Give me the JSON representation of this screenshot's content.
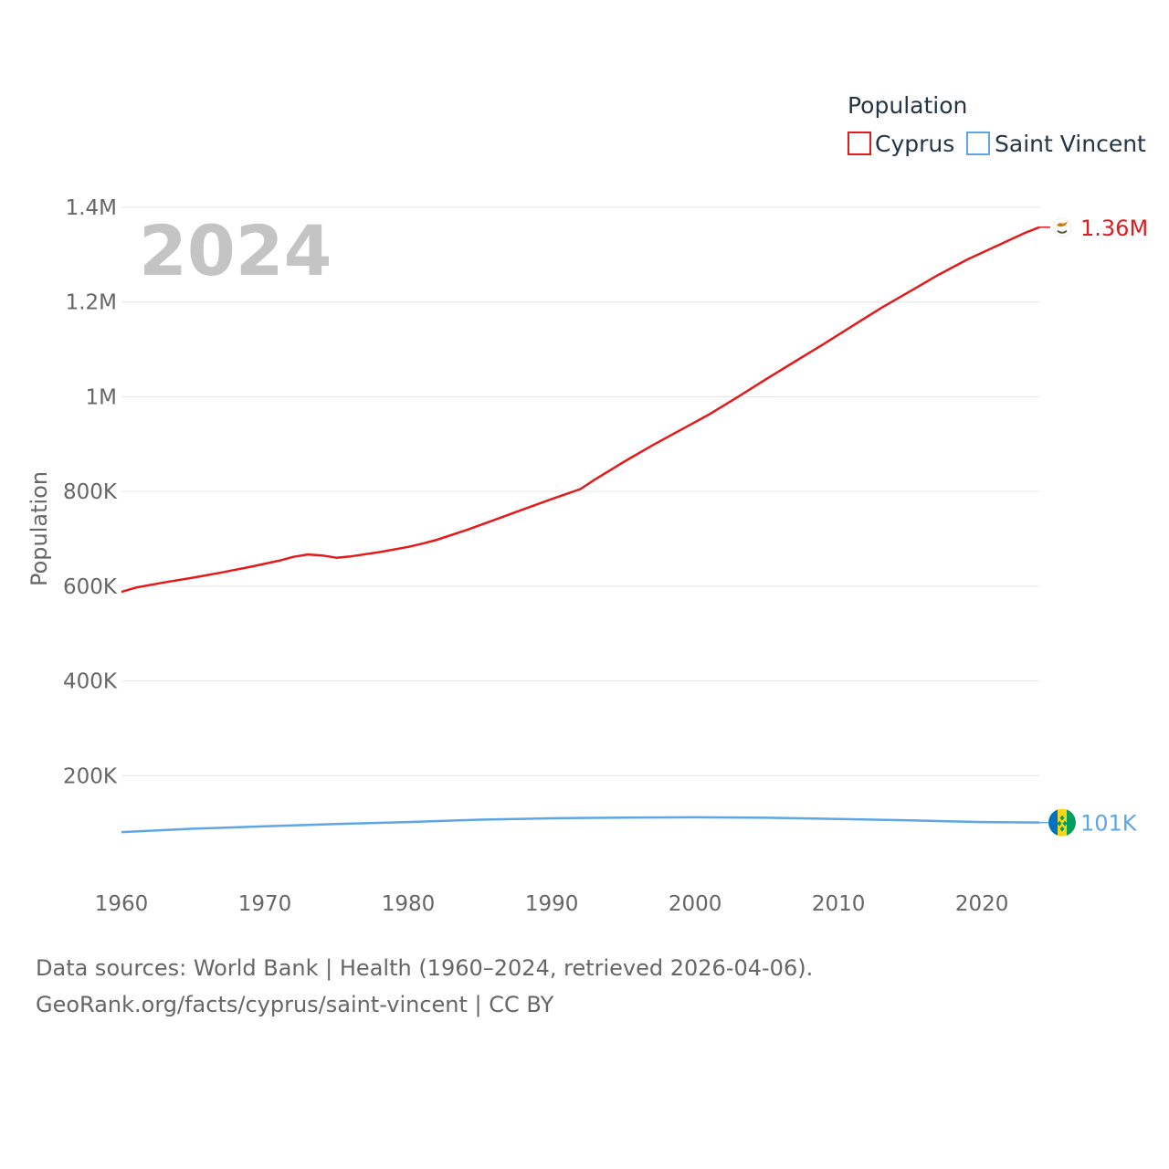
{
  "chart_data": {
    "type": "line",
    "year_watermark": "2024",
    "ylabel": "Population",
    "xlim": [
      1960,
      2024
    ],
    "ylim": [
      0,
      1400000
    ],
    "x_ticks": [
      {
        "value": 1960,
        "label": "1960"
      },
      {
        "value": 1970,
        "label": "1970"
      },
      {
        "value": 1980,
        "label": "1980"
      },
      {
        "value": 1990,
        "label": "1990"
      },
      {
        "value": 2000,
        "label": "2000"
      },
      {
        "value": 2010,
        "label": "2010"
      },
      {
        "value": 2020,
        "label": "2020"
      }
    ],
    "y_ticks": [
      {
        "value": 200000,
        "label": "200K"
      },
      {
        "value": 400000,
        "label": "400K"
      },
      {
        "value": 600000,
        "label": "600K"
      },
      {
        "value": 800000,
        "label": "800K"
      },
      {
        "value": 1000000,
        "label": "1M"
      },
      {
        "value": 1200000,
        "label": "1.2M"
      },
      {
        "value": 1400000,
        "label": "1.4M"
      }
    ],
    "legend": {
      "title": "Population",
      "position": "top-right"
    },
    "series": [
      {
        "name": "Cyprus",
        "color": "#e31a1c",
        "end_label": "1.36M",
        "flag_icon": "cyprus-flag-icon",
        "points": [
          [
            1960,
            588000
          ],
          [
            1961,
            597000
          ],
          [
            1963,
            608000
          ],
          [
            1965,
            618000
          ],
          [
            1967,
            629000
          ],
          [
            1969,
            641000
          ],
          [
            1971,
            654000
          ],
          [
            1972,
            662000
          ],
          [
            1973,
            667000
          ],
          [
            1974,
            665000
          ],
          [
            1975,
            660000
          ],
          [
            1976,
            663000
          ],
          [
            1978,
            672000
          ],
          [
            1980,
            683000
          ],
          [
            1981,
            690000
          ],
          [
            1982,
            698000
          ],
          [
            1984,
            718000
          ],
          [
            1986,
            740000
          ],
          [
            1988,
            762000
          ],
          [
            1990,
            784000
          ],
          [
            1992,
            805000
          ],
          [
            1993,
            825000
          ],
          [
            1995,
            862000
          ],
          [
            1997,
            897000
          ],
          [
            1999,
            930000
          ],
          [
            2001,
            963000
          ],
          [
            2003,
            1000000
          ],
          [
            2005,
            1038000
          ],
          [
            2007,
            1075000
          ],
          [
            2009,
            1112000
          ],
          [
            2011,
            1150000
          ],
          [
            2013,
            1188000
          ],
          [
            2015,
            1223000
          ],
          [
            2017,
            1258000
          ],
          [
            2019,
            1290000
          ],
          [
            2021,
            1318000
          ],
          [
            2023,
            1346000
          ],
          [
            2024,
            1358000
          ]
        ]
      },
      {
        "name": "Saint Vincent",
        "color": "#5ea6e6",
        "end_label": "101K",
        "flag_icon": "saint-vincent-flag-icon",
        "points": [
          [
            1960,
            80800
          ],
          [
            1965,
            88000
          ],
          [
            1970,
            93000
          ],
          [
            1975,
            98000
          ],
          [
            1980,
            102000
          ],
          [
            1985,
            107000
          ],
          [
            1990,
            110000
          ],
          [
            1995,
            111500
          ],
          [
            2000,
            112000
          ],
          [
            2005,
            111000
          ],
          [
            2010,
            108500
          ],
          [
            2015,
            105500
          ],
          [
            2020,
            102000
          ],
          [
            2024,
            101000
          ]
        ]
      }
    ],
    "source_lines": [
      "Data sources: World Bank | Health (1960–2024, retrieved 2026-04-06).",
      "GeoRank.org/facts/cyprus/saint-vincent | CC BY"
    ]
  }
}
